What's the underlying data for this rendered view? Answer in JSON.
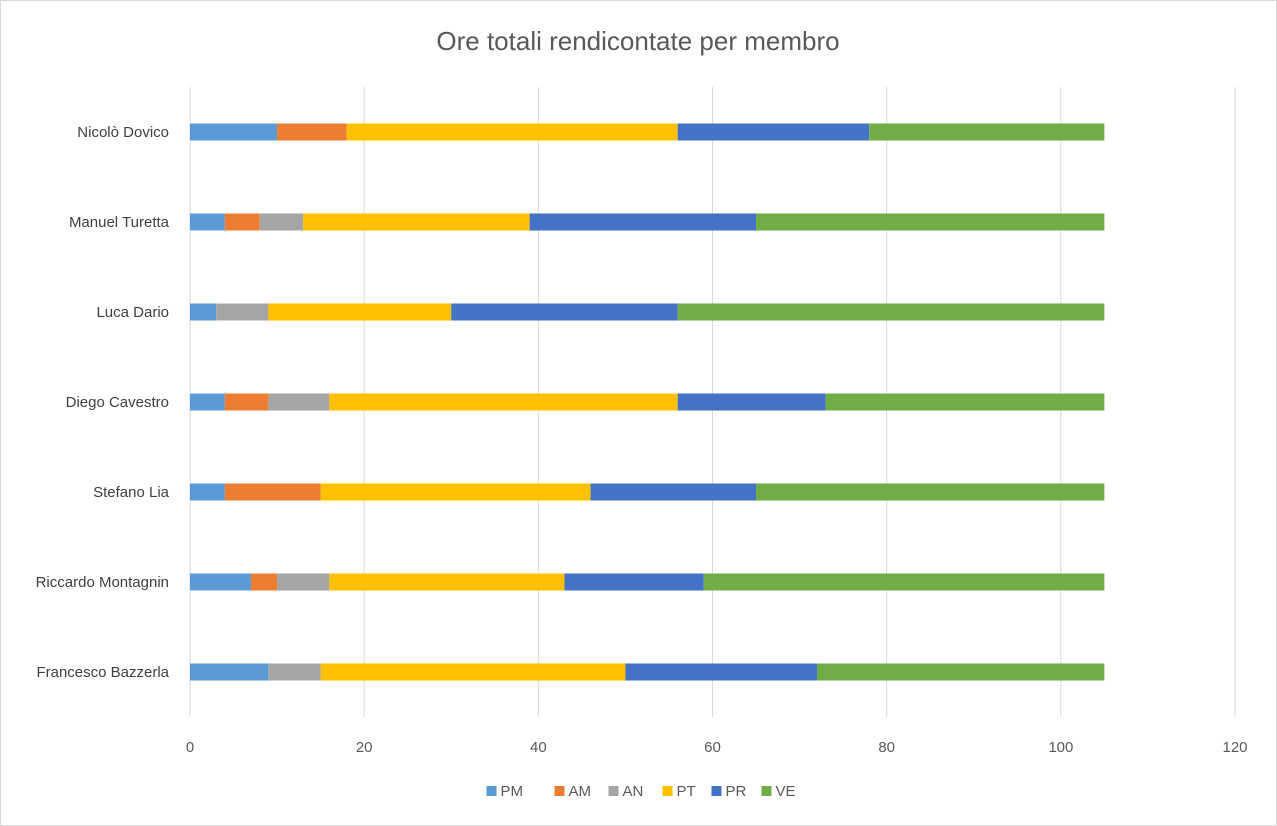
{
  "chart_data": {
    "type": "bar",
    "orientation": "horizontal",
    "stacked": true,
    "title": "Ore totali rendicontate per membro",
    "xlabel": "",
    "ylabel": "",
    "xlim": [
      0,
      120
    ],
    "x_ticks": [
      0,
      20,
      40,
      60,
      80,
      100,
      120
    ],
    "grid": true,
    "legend_position": "bottom",
    "categories": [
      "Francesco Bazzerla",
      "Riccardo Montagnin",
      "Stefano Lia",
      "Diego Cavestro",
      "Luca Dario",
      "Manuel Turetta",
      "Nicolò Dovico"
    ],
    "series": [
      {
        "name": "PM",
        "color": "#5b9bd5",
        "values": [
          9,
          7,
          4,
          4,
          3,
          4,
          10
        ]
      },
      {
        "name": "AM",
        "color": "#ed7d31",
        "values": [
          0,
          3,
          11,
          5,
          0,
          4,
          8
        ]
      },
      {
        "name": "AN",
        "color": "#a5a5a5",
        "values": [
          6,
          6,
          0,
          7,
          6,
          5,
          0
        ]
      },
      {
        "name": "PT",
        "color": "#ffc000",
        "values": [
          35,
          27,
          31,
          40,
          21,
          26,
          38
        ]
      },
      {
        "name": "PR",
        "color": "#4472c4",
        "values": [
          22,
          16,
          19,
          17,
          26,
          26,
          22
        ]
      },
      {
        "name": "VE",
        "color": "#70ad47",
        "values": [
          33,
          46,
          40,
          32,
          49,
          40,
          27
        ]
      }
    ]
  }
}
